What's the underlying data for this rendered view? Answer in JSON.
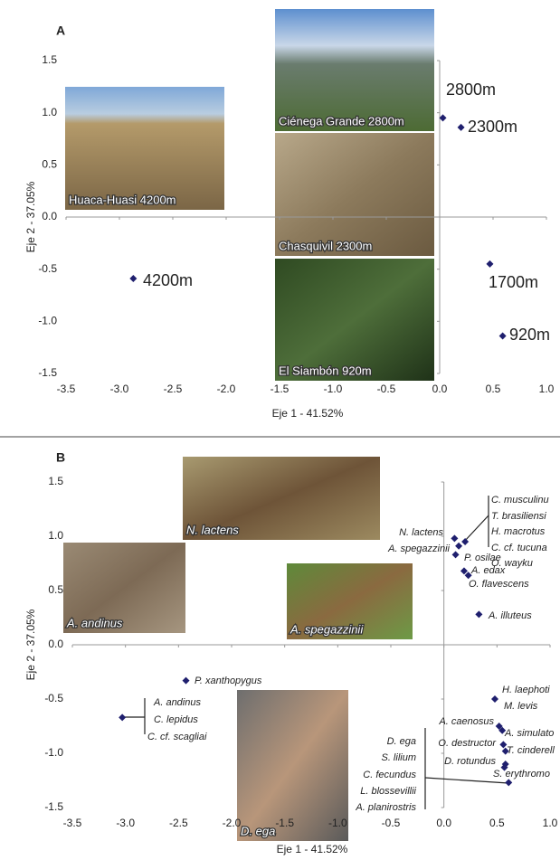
{
  "chart_data": [
    {
      "type": "scatter",
      "panel": "A",
      "xlabel": "Eje 1 - 41.52%",
      "ylabel": "Eje 2 - 37.05%",
      "xlim": [
        -3.5,
        1
      ],
      "ylim": [
        -1.5,
        1.5
      ],
      "xticks": [
        {
          "value": -3.5,
          "label": "-3.5"
        },
        {
          "value": -3,
          "label": "-3.0"
        },
        {
          "value": -2.5,
          "label": "-2.5"
        },
        {
          "value": -2,
          "label": "-2.0"
        },
        {
          "value": -1.5,
          "label": "-1.5"
        },
        {
          "value": -1,
          "label": "-1.0"
        },
        {
          "value": -0.5,
          "label": "-0.5"
        },
        {
          "value": 0,
          "label": "0.0"
        },
        {
          "value": 0.5,
          "label": "0.5"
        },
        {
          "value": 1,
          "label": "1.0"
        }
      ],
      "yticks": [
        {
          "value": 1.5,
          "label": "1.5"
        },
        {
          "value": 1,
          "label": "1.0"
        },
        {
          "value": 0.5,
          "label": "0.5"
        },
        {
          "value": 0,
          "label": "0.0"
        },
        {
          "value": -0.5,
          "label": "-0.5"
        },
        {
          "value": -1,
          "label": "-1.0"
        },
        {
          "value": -1.5,
          "label": "-1.5"
        }
      ],
      "color": "#1f1f6e",
      "x": [
        -2.87,
        0.03,
        0.2,
        0.47,
        0.59
      ],
      "values": [
        -0.59,
        0.95,
        0.86,
        -0.45,
        -1.14
      ],
      "point_labels": [
        [
          "4200m"
        ],
        [
          "2800m"
        ],
        [
          "2300m"
        ],
        [
          "1700m"
        ],
        [
          "920m"
        ]
      ],
      "photos": [
        {
          "caption": "Huaca-Huasi 4200m"
        },
        {
          "caption": "Ciénega Grande 2800m"
        },
        {
          "caption": "Chasquivil 2300m"
        },
        {
          "caption": "El Siambón 920m"
        }
      ]
    },
    {
      "type": "scatter",
      "panel": "B",
      "xlabel": "Eje 1 - 41.52%",
      "ylabel": "Eje 2 - 37.05%",
      "xlim": [
        -3.5,
        1
      ],
      "ylim": [
        -1.5,
        1.5
      ],
      "xticks": [
        {
          "value": -3.5,
          "label": "-3.5"
        },
        {
          "value": -3,
          "label": "-3.0"
        },
        {
          "value": -2.5,
          "label": "-2.5"
        },
        {
          "value": -2,
          "label": "-2.0"
        },
        {
          "value": -1.5,
          "label": "-1.5"
        },
        {
          "value": -1,
          "label": "-1.0"
        },
        {
          "value": -0.5,
          "label": "-0.5"
        },
        {
          "value": 0,
          "label": "0.0"
        },
        {
          "value": 0.5,
          "label": "0.5"
        },
        {
          "value": 1,
          "label": "1.0"
        }
      ],
      "yticks": [
        {
          "value": 1.5,
          "label": "1.5"
        },
        {
          "value": 1,
          "label": "1.0"
        },
        {
          "value": 0.5,
          "label": "0.5"
        },
        {
          "value": 0,
          "label": "0.0"
        },
        {
          "value": -0.5,
          "label": "-0.5"
        },
        {
          "value": -1,
          "label": "-1.0"
        },
        {
          "value": -1.5,
          "label": "-1.5"
        }
      ],
      "color": "#1f1f6e",
      "x": [
        0.1,
        0.2,
        0.14,
        0.11,
        0.19,
        0.23,
        0.33,
        -2.43,
        -3.03,
        0.48,
        0.52,
        0.55,
        0.56,
        0.58,
        0.58,
        0.57,
        0.61
      ],
      "values": [
        0.98,
        0.95,
        0.91,
        0.83,
        0.68,
        0.64,
        0.28,
        -0.33,
        -0.67,
        -0.5,
        -0.75,
        -0.79,
        -0.92,
        -0.98,
        -1.1,
        -1.13,
        -1.27
      ],
      "point_labels": [
        [
          "N. lactens"
        ],
        [
          "C. musculinu",
          "T. brasiliensi",
          "H. macrotus",
          "C. cf. tucuna",
          "O. wayku"
        ],
        [
          "P. osilae"
        ],
        [
          "A. spegazzinii"
        ],
        [
          "A. edax"
        ],
        [
          "O. flavescens"
        ],
        [
          "A. illuteus"
        ],
        [
          "P. xanthopygus"
        ],
        [
          "A. andinus",
          "C. lepidus",
          "C. cf. scagliai"
        ],
        [
          "H. laephoti",
          "M. levis"
        ],
        [
          "A. caenosus"
        ],
        [
          "A. simulato"
        ],
        [
          "O. destructor"
        ],
        [
          "T. cinderell"
        ],
        [
          "D. rotundus"
        ],
        [
          "S. erythromo"
        ],
        [
          "D. ega",
          "S. lilium",
          "C. fecundus",
          "L. blossevillii",
          "A. planirostris"
        ]
      ],
      "photos": [
        {
          "caption": "N. lactens"
        },
        {
          "caption": "A. andinus"
        },
        {
          "caption": "A. spegazzinii"
        },
        {
          "caption": "D. ega"
        }
      ]
    }
  ]
}
